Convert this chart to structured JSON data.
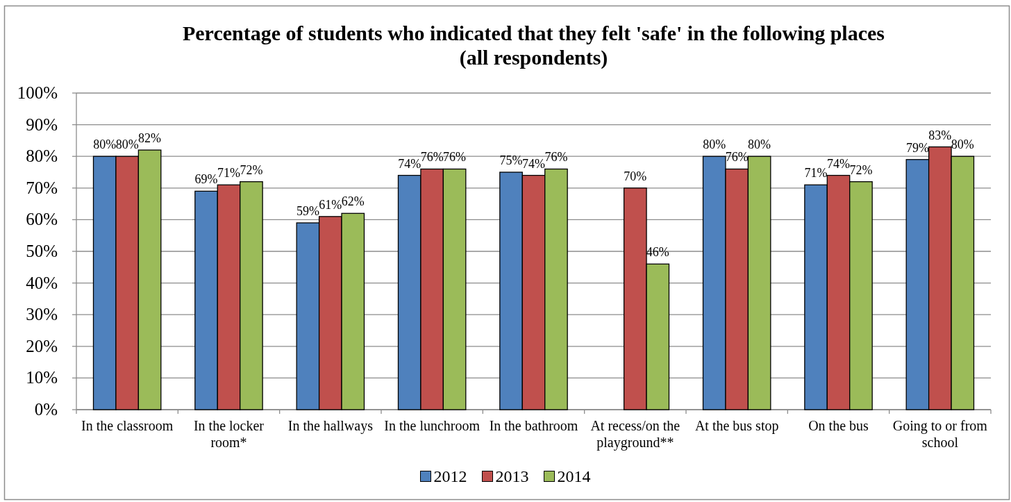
{
  "chart_data": {
    "type": "bar",
    "title": "Percentage of students who indicated that they felt 'safe' in the following places",
    "subtitle": "(all respondents)",
    "categories": [
      "In the classroom",
      "In the locker room*",
      "In the hallways",
      "In the lunchroom",
      "In the bathroom",
      "At recess/on the playground**",
      "At the bus stop",
      "On the bus",
      "Going to or from school"
    ],
    "series": [
      {
        "name": "2012",
        "color": "#4f81bd",
        "values": [
          80,
          69,
          59,
          74,
          75,
          null,
          80,
          71,
          79
        ],
        "value_labels": [
          "80%",
          "69%",
          "59%",
          "74%",
          "75%",
          null,
          "80%",
          "71%",
          "79%"
        ]
      },
      {
        "name": "2013",
        "color": "#c0504d",
        "values": [
          80,
          71,
          61,
          76,
          74,
          70,
          76,
          74,
          83
        ],
        "value_labels": [
          "80%",
          "71%",
          "61%",
          "76%",
          "74%",
          "70%",
          "76%",
          "74%",
          "83%"
        ]
      },
      {
        "name": "2014",
        "color": "#9bbb59",
        "values": [
          82,
          72,
          62,
          76,
          76,
          46,
          80,
          72,
          80
        ],
        "value_labels": [
          "82%",
          "72%",
          "62%",
          "76%",
          "76%",
          "46%",
          "80%",
          "72%",
          "80%"
        ]
      }
    ],
    "ylim": [
      0,
      100
    ],
    "yticks": [
      {
        "value": 0,
        "label": "0%"
      },
      {
        "value": 10,
        "label": "10%"
      },
      {
        "value": 20,
        "label": "20%"
      },
      {
        "value": 30,
        "label": "30%"
      },
      {
        "value": 40,
        "label": "40%"
      },
      {
        "value": 50,
        "label": "50%"
      },
      {
        "value": 60,
        "label": "60%"
      },
      {
        "value": 70,
        "label": "70%"
      },
      {
        "value": 80,
        "label": "80%"
      },
      {
        "value": 90,
        "label": "90%"
      },
      {
        "value": 100,
        "label": "100%"
      }
    ],
    "grid": "y",
    "legend": "bottom"
  }
}
